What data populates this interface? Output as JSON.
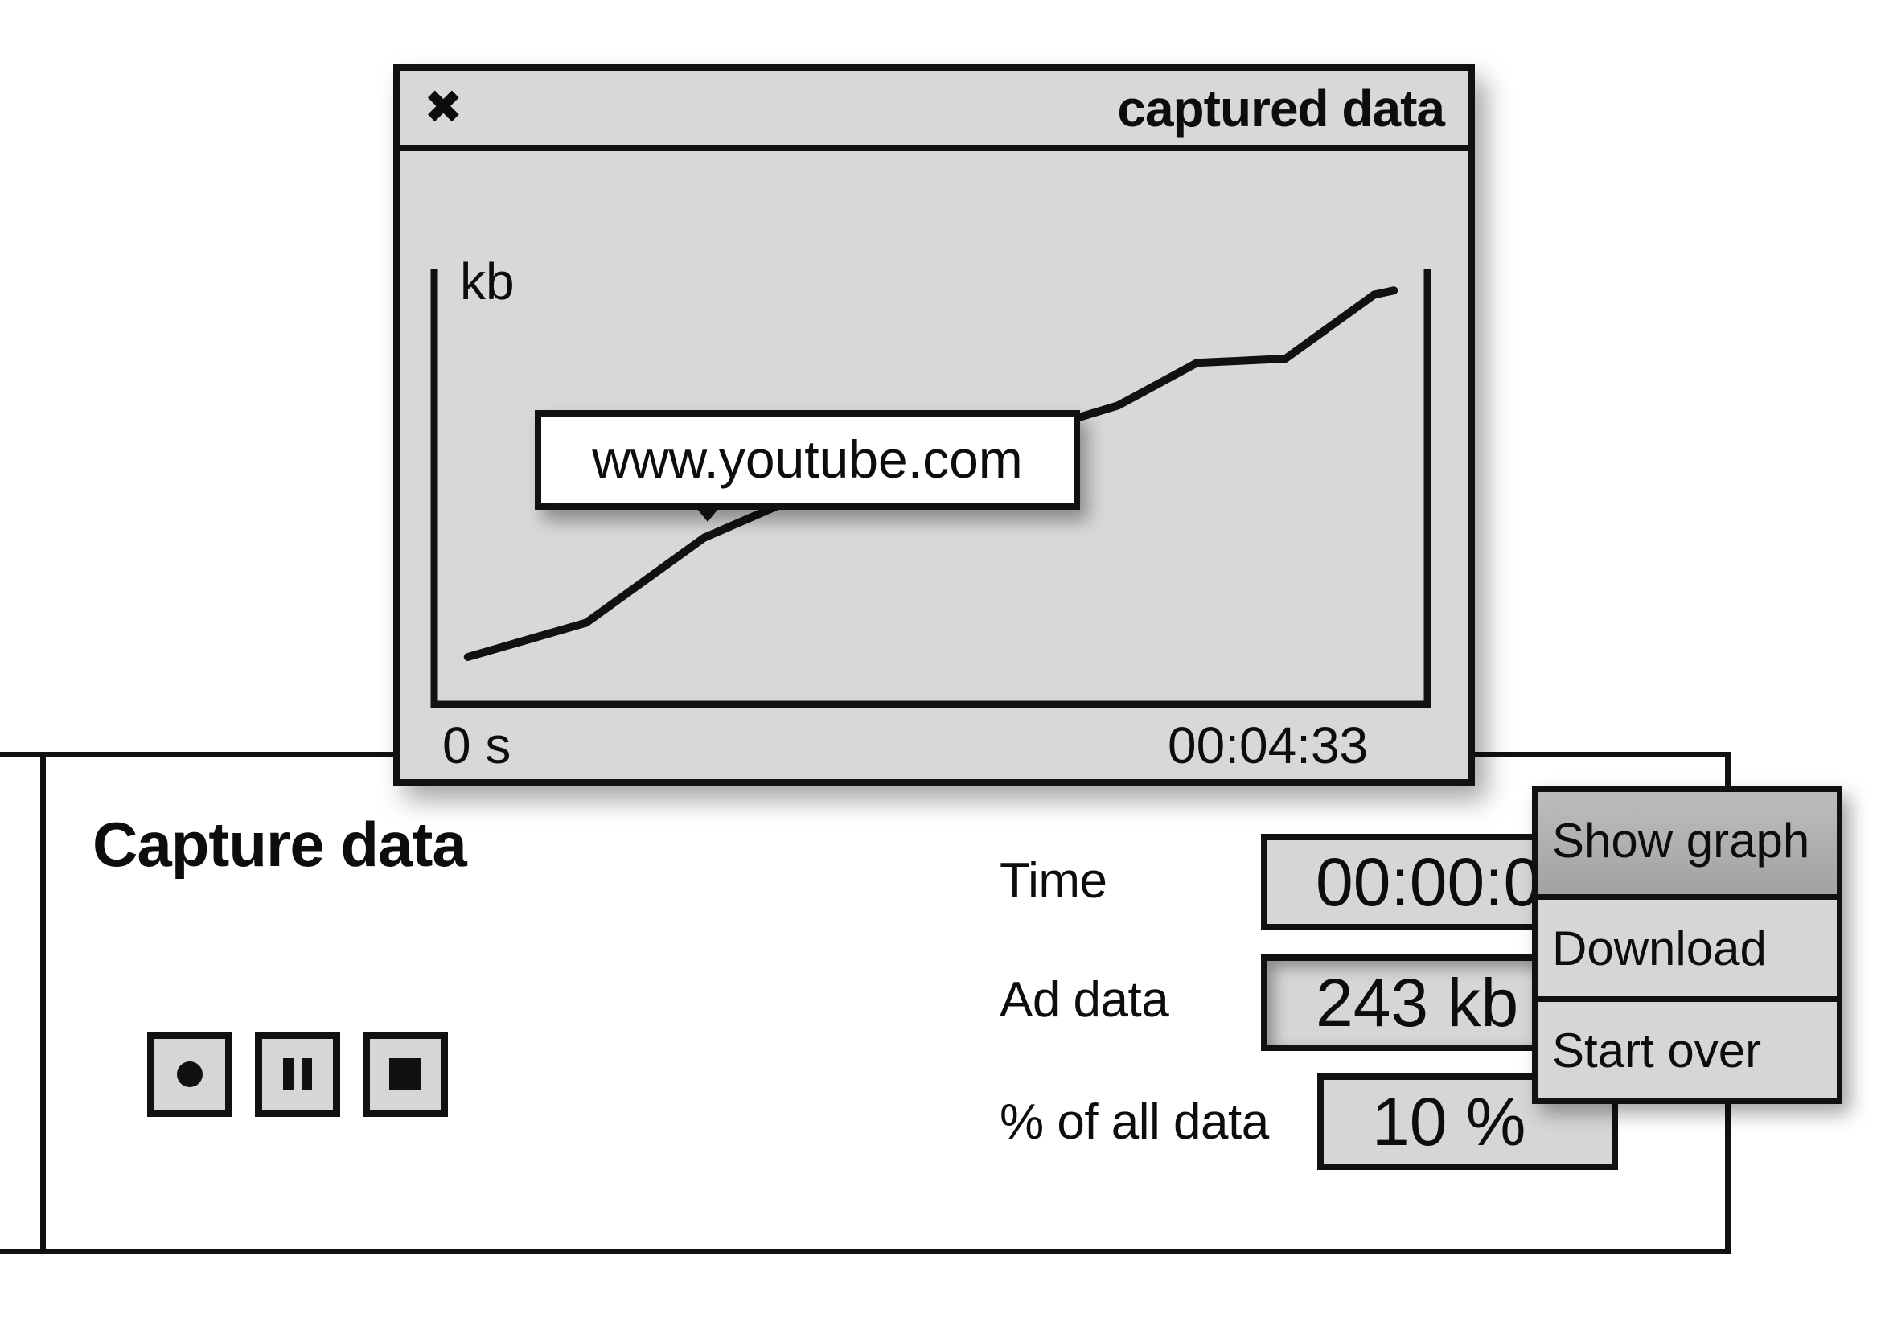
{
  "capture_panel": {
    "title": "Capture data",
    "controls": {
      "record_icon": "record-icon",
      "pause_icon": "pause-icon",
      "stop_icon": "stop-icon"
    },
    "fields": {
      "time": {
        "label": "Time",
        "value": "00:00:00"
      },
      "ad_data": {
        "label": "Ad data",
        "value": "243 kb"
      },
      "percent": {
        "label": "% of all data",
        "value": "10 %"
      }
    }
  },
  "menu": {
    "items": [
      {
        "label": "Show graph",
        "active": true
      },
      {
        "label": "Download",
        "active": false
      },
      {
        "label": "Start over",
        "active": false
      }
    ]
  },
  "window": {
    "title": "captured data",
    "close_icon": "close-icon"
  },
  "chart_data": {
    "type": "line",
    "ylabel": "kb",
    "x_start_label": "0 s",
    "x_end_label": "00:04:33",
    "x": [
      0.03,
      0.15,
      0.27,
      0.38,
      0.47,
      0.59,
      0.69,
      0.77,
      0.86,
      0.95,
      0.97
    ],
    "y": [
      0.1,
      0.18,
      0.38,
      0.49,
      0.57,
      0.62,
      0.69,
      0.79,
      0.8,
      0.95,
      0.96
    ],
    "ylim": [
      0,
      1
    ],
    "grid": false,
    "tooltip": "www.youtube.com"
  },
  "colors": {
    "ink": "#111111",
    "panel_fill": "#d6d6d6",
    "window_fill": "#d8d8d8",
    "background": "#ffffff"
  }
}
